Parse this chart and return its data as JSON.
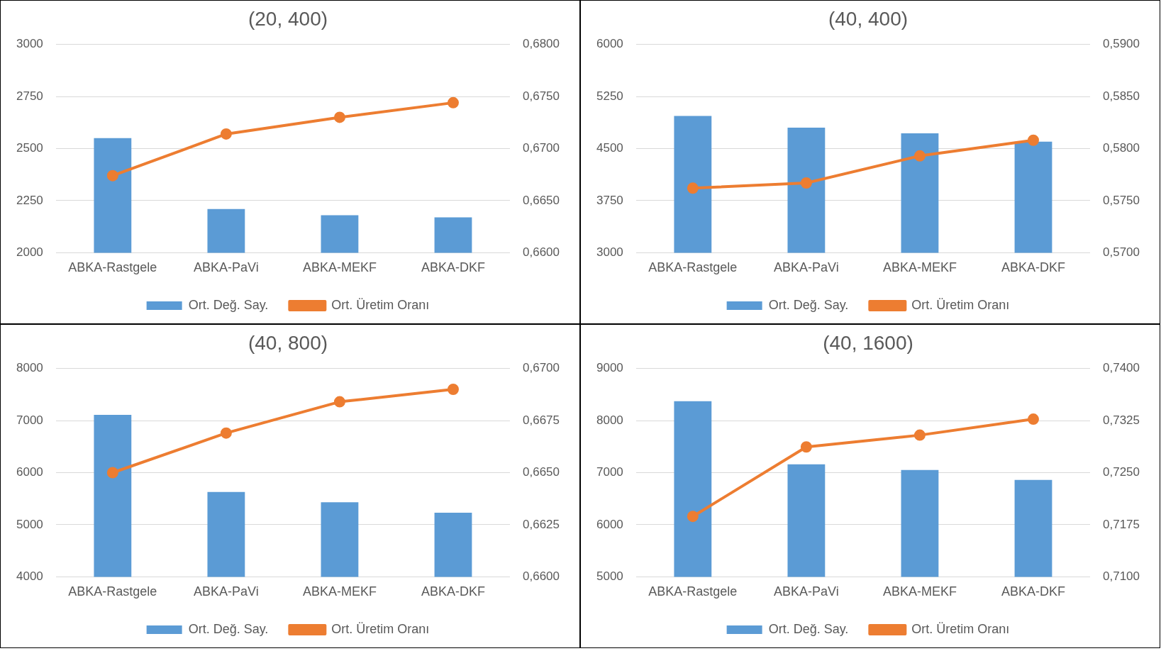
{
  "chart_data": [
    {
      "type": "bar",
      "title": "(20, 400)",
      "categories": [
        "ABKA-Rastgele",
        "ABKA-PaVi",
        "ABKA-MEKF",
        "ABKA-DKF"
      ],
      "series": [
        {
          "name": "Ort. Değ. Say.",
          "color": "#5b9bd5",
          "values": [
            2550,
            2210,
            2180,
            2170
          ]
        },
        {
          "name": "Ort. Üretim Oranı",
          "type": "line",
          "axis": "y2",
          "color": "#ed7d31",
          "values": [
            0.6674,
            0.6714,
            0.673,
            0.6744
          ]
        }
      ],
      "ylim": [
        2000,
        3000
      ],
      "yticks": [
        2000,
        2250,
        2500,
        2750,
        3000
      ],
      "y2lim": [
        0.66,
        0.68
      ],
      "y2ticks": [
        {
          "value": 0.66,
          "label": "0,6600"
        },
        {
          "value": 0.665,
          "label": "0,6650"
        },
        {
          "value": 0.67,
          "label": "0,6700"
        },
        {
          "value": 0.675,
          "label": "0,6750"
        },
        {
          "value": 0.68,
          "label": "0,6800"
        }
      ],
      "grid": "y",
      "legend": "bottom",
      "marker": "circle"
    },
    {
      "type": "bar",
      "title": "(40, 400)",
      "categories": [
        "ABKA-Rastgele",
        "ABKA-PaVi",
        "ABKA-MEKF",
        "ABKA-DKF"
      ],
      "series": [
        {
          "name": "Ort. Değ. Say.",
          "color": "#5b9bd5",
          "values": [
            4970,
            4800,
            4720,
            4600
          ]
        },
        {
          "name": "Ort. Üretim Oranı",
          "type": "line",
          "axis": "y2",
          "color": "#ed7d31",
          "values": [
            0.5762,
            0.5767,
            0.5793,
            0.5808
          ]
        }
      ],
      "ylim": [
        3000,
        6000
      ],
      "yticks": [
        3000,
        3750,
        4500,
        5250,
        6000
      ],
      "y2lim": [
        0.57,
        0.59
      ],
      "y2ticks": [
        {
          "value": 0.57,
          "label": "0,5700"
        },
        {
          "value": 0.575,
          "label": "0,5750"
        },
        {
          "value": 0.58,
          "label": "0,5800"
        },
        {
          "value": 0.585,
          "label": "0,5850"
        },
        {
          "value": 0.59,
          "label": "0,5900"
        }
      ],
      "grid": "y",
      "legend": "bottom",
      "marker": "circle"
    },
    {
      "type": "bar",
      "title": "(40, 800)",
      "categories": [
        "ABKA-Rastgele",
        "ABKA-PaVi",
        "ABKA-MEKF",
        "ABKA-DKF"
      ],
      "series": [
        {
          "name": "Ort. Değ. Say.",
          "color": "#5b9bd5",
          "values": [
            7110,
            5630,
            5430,
            5230
          ]
        },
        {
          "name": "Ort. Üretim Oranı",
          "type": "line",
          "axis": "y2",
          "color": "#ed7d31",
          "values": [
            0.665,
            0.6669,
            0.6684,
            0.669
          ]
        }
      ],
      "ylim": [
        4000,
        8000
      ],
      "yticks": [
        4000,
        5000,
        6000,
        7000,
        8000
      ],
      "y2lim": [
        0.66,
        0.67
      ],
      "y2ticks": [
        {
          "value": 0.66,
          "label": "0,6600"
        },
        {
          "value": 0.6625,
          "label": "0,6625"
        },
        {
          "value": 0.665,
          "label": "0,6650"
        },
        {
          "value": 0.6675,
          "label": "0,6675"
        },
        {
          "value": 0.67,
          "label": "0,6700"
        }
      ],
      "grid": "y",
      "legend": "bottom",
      "marker": "circle"
    },
    {
      "type": "bar",
      "title": "(40, 1600)",
      "categories": [
        "ABKA-Rastgele",
        "ABKA-PaVi",
        "ABKA-MEKF",
        "ABKA-DKF"
      ],
      "series": [
        {
          "name": "Ort. Değ. Say.",
          "color": "#5b9bd5",
          "values": [
            8370,
            7160,
            7050,
            6860
          ]
        },
        {
          "name": "Ort. Üretim Oranı",
          "type": "line",
          "axis": "y2",
          "color": "#ed7d31",
          "values": [
            0.7187,
            0.7287,
            0.7304,
            0.7327
          ]
        }
      ],
      "ylim": [
        5000,
        9000
      ],
      "yticks": [
        5000,
        6000,
        7000,
        8000,
        9000
      ],
      "y2lim": [
        0.71,
        0.74
      ],
      "y2ticks": [
        {
          "value": 0.71,
          "label": "0,7100"
        },
        {
          "value": 0.7175,
          "label": "0,7175"
        },
        {
          "value": 0.725,
          "label": "0,7250"
        },
        {
          "value": 0.7325,
          "label": "0,7325"
        },
        {
          "value": 0.74,
          "label": "0,7400"
        }
      ],
      "grid": "y",
      "legend": "bottom",
      "marker": "circle"
    }
  ]
}
